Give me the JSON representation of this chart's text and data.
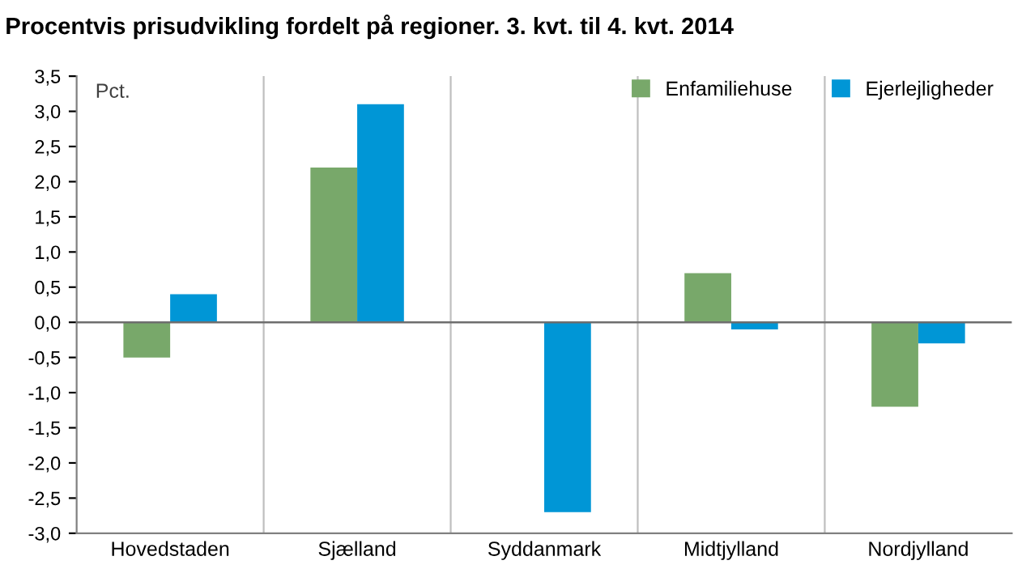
{
  "chart_data": {
    "type": "bar",
    "title": "Procentvis prisudvikling fordelt på regioner. 3. kvt. til 4. kvt. 2014",
    "ylabel": "Pct.",
    "categories": [
      "Hovedstaden",
      "Sjælland",
      "Syddanmark",
      "Midtjylland",
      "Nordjylland"
    ],
    "series": [
      {
        "name": "Enfamiliehuse",
        "color": "#78a86a",
        "values": [
          -0.5,
          2.2,
          0.0,
          0.7,
          -1.2
        ]
      },
      {
        "name": "Ejerlejligheder",
        "color": "#0096d6",
        "values": [
          0.4,
          3.1,
          -2.7,
          -0.1,
          -0.3
        ]
      }
    ],
    "ylim": [
      -3.0,
      3.5
    ],
    "yticks": [
      {
        "value": -3.0,
        "label": "-3,0"
      },
      {
        "value": -2.5,
        "label": "-2,5"
      },
      {
        "value": -2.0,
        "label": "-2,0"
      },
      {
        "value": -1.5,
        "label": "-1,5"
      },
      {
        "value": -1.0,
        "label": "-1,0"
      },
      {
        "value": -0.5,
        "label": "-0,5"
      },
      {
        "value": 0.0,
        "label": "0,0"
      },
      {
        "value": 0.5,
        "label": "0,5"
      },
      {
        "value": 1.0,
        "label": "1,0"
      },
      {
        "value": 1.5,
        "label": "1,5"
      },
      {
        "value": 2.0,
        "label": "2,0"
      },
      {
        "value": 2.5,
        "label": "2,5"
      },
      {
        "value": 3.0,
        "label": "3,0"
      },
      {
        "value": 3.5,
        "label": "3,5"
      }
    ],
    "grid": "x",
    "legend": "top right"
  }
}
